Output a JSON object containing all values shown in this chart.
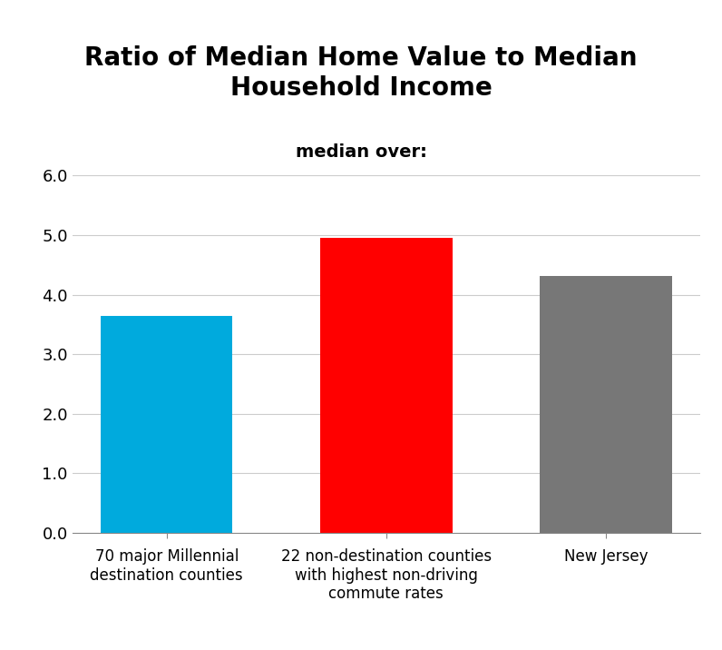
{
  "title": "Ratio of Median Home Value to Median\nHousehold Income",
  "subtitle": "median over:",
  "categories": [
    "70 major Millennial\ndestination counties",
    "22 non-destination counties\nwith highest non-driving\ncommute rates",
    "New Jersey"
  ],
  "values": [
    3.65,
    4.95,
    4.32
  ],
  "bar_colors": [
    "#00AADD",
    "#FF0000",
    "#777777"
  ],
  "ylim": [
    0,
    6.0
  ],
  "yticks": [
    0.0,
    1.0,
    2.0,
    3.0,
    4.0,
    5.0,
    6.0
  ],
  "title_fontsize": 20,
  "subtitle_fontsize": 14,
  "tick_fontsize": 13,
  "xlabel_fontsize": 12,
  "background_color": "#FFFFFF",
  "bar_width": 0.6
}
